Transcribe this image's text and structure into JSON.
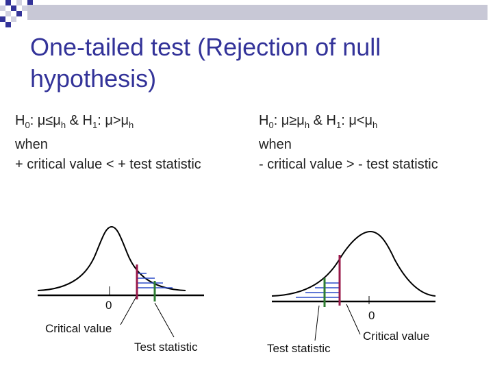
{
  "slide": {
    "title": "One-tailed test (Rejection of null hypothesis)"
  },
  "left": {
    "h0_symbol": "H",
    "h0_sub": "0",
    "h0_rest": ": μ≤μ",
    "h0_mu_sub": "h",
    "amp": " & ",
    "h1_symbol": "H",
    "h1_sub": "1",
    "h1_rest": ": μ>μ",
    "h1_mu_sub": "h",
    "when": "when",
    "condition": "+ critical value < + test statistic",
    "zero_label": "0",
    "critical_label": "Critical value",
    "test_label": "Test statistic"
  },
  "right": {
    "h0_symbol": "H",
    "h0_sub": "0",
    "h0_rest": ": μ≥μ",
    "h0_mu_sub": "h",
    "amp": " & ",
    "h1_symbol": "H",
    "h1_sub": "1",
    "h1_rest": ": μ<μ",
    "h1_mu_sub": "h",
    "when": "when",
    "condition": "- critical value > - test statistic",
    "zero_label": "0",
    "critical_label": "Critical value",
    "test_label": "Test statistic"
  },
  "colors": {
    "title": "#333399",
    "critical_line": "#99184a",
    "test_line": "#2e7d32",
    "shading": "#2b4cc8",
    "header_bar": "#c8c8d6",
    "checker_dark": "#333399",
    "checker_light": "#d0d0e0"
  }
}
